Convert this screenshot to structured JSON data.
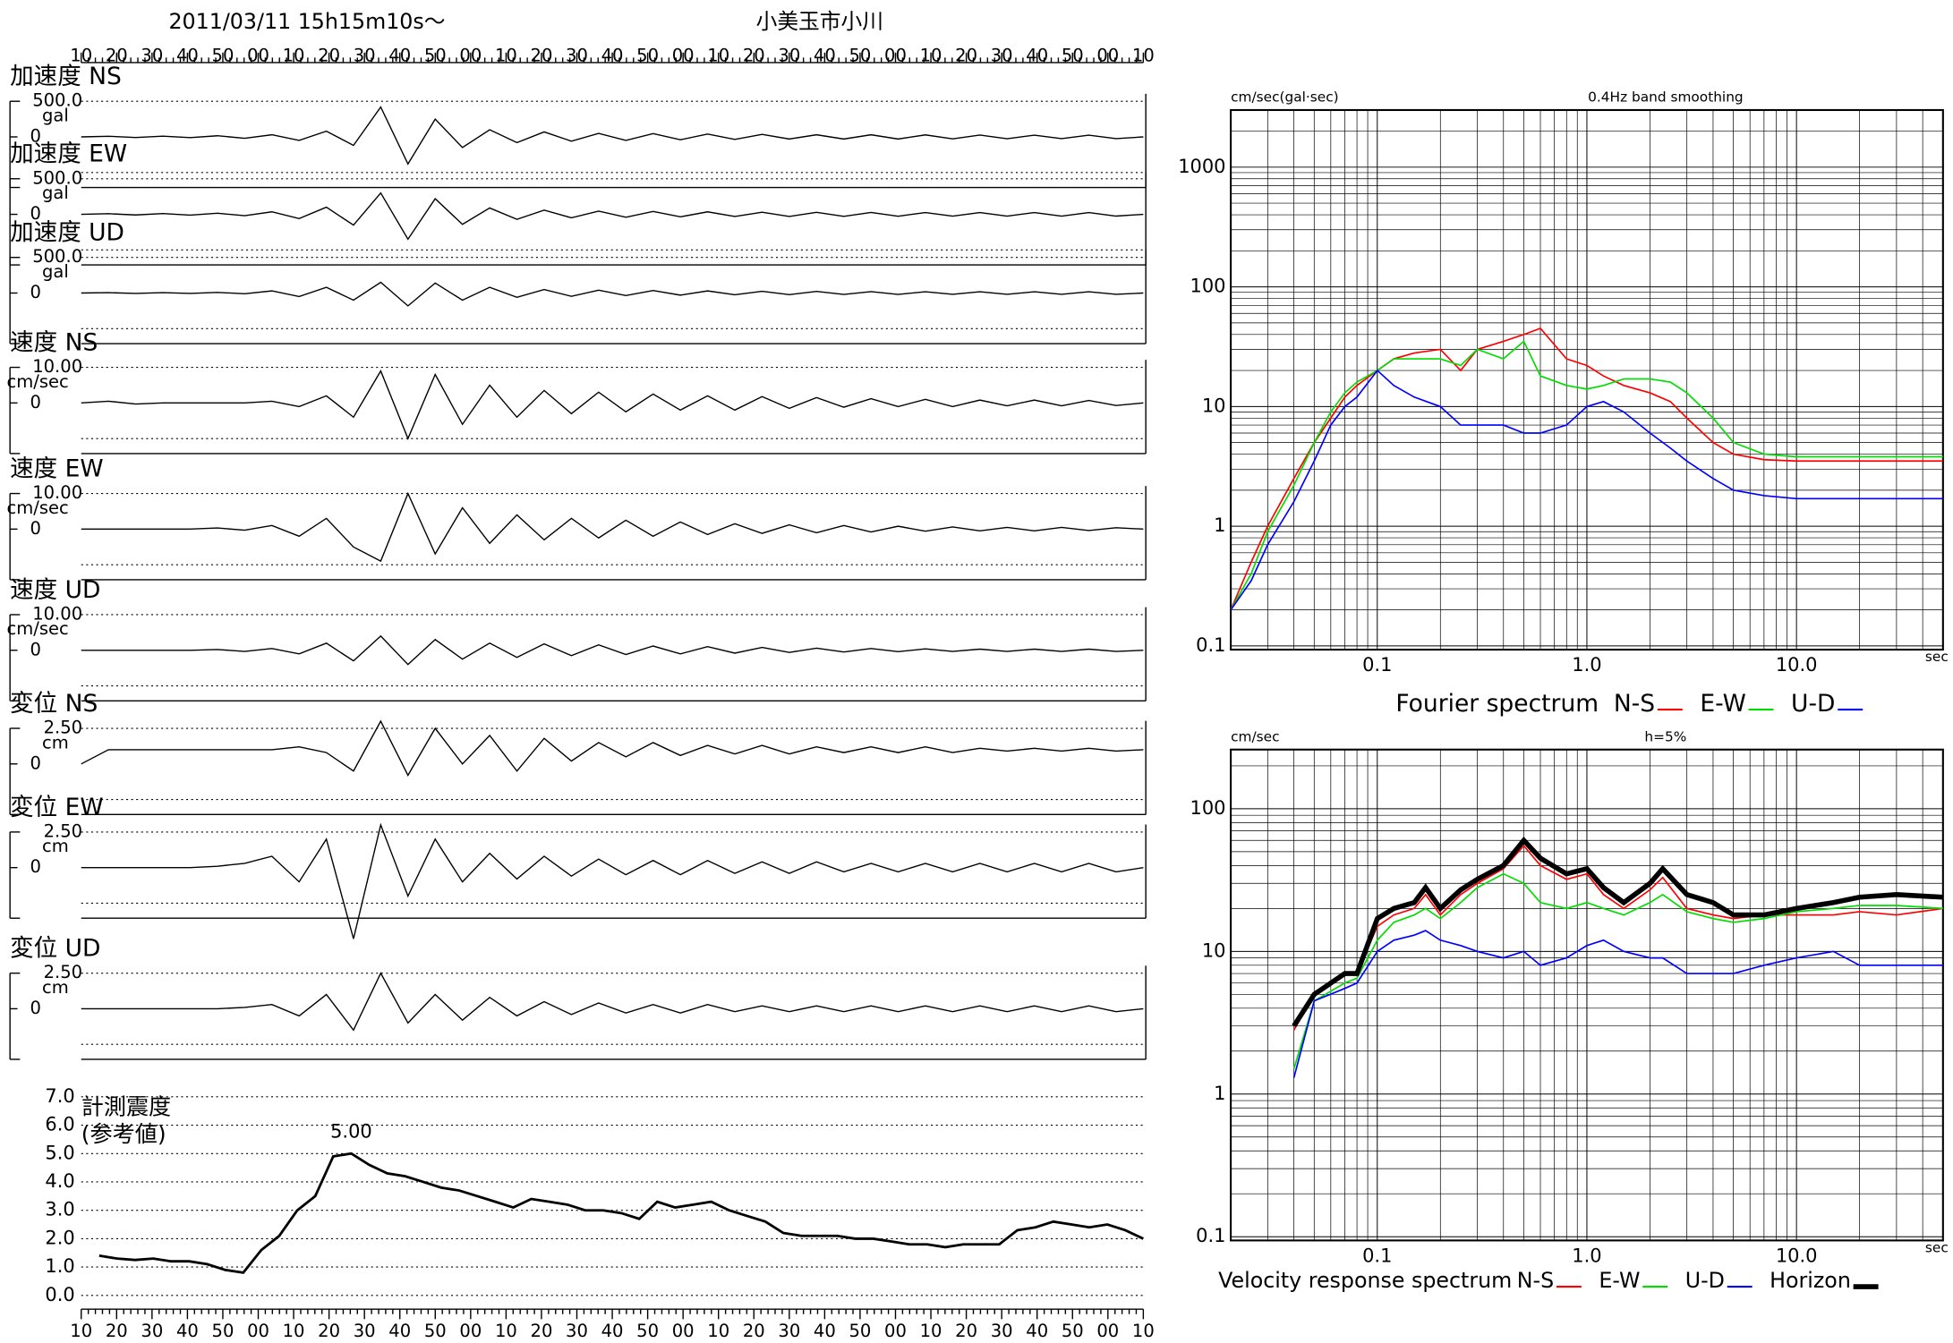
{
  "header": {
    "date": "2011/03/11  15h15m10s〜",
    "station": "小美玉市小川"
  },
  "time_labels": [
    "10",
    "20",
    "30",
    "40",
    "50",
    "00",
    "10",
    "20",
    "30",
    "40",
    "50",
    "00",
    "10",
    "20",
    "30",
    "40",
    "50",
    "00",
    "10",
    "20",
    "30",
    "40",
    "50",
    "00",
    "10",
    "20",
    "30",
    "40",
    "50",
    "00",
    "10"
  ],
  "chart_data": [
    {
      "type": "line",
      "title": "加速度 NS",
      "unit": "gal",
      "ylim": [
        -500,
        500
      ],
      "yticks": [
        {
          "value": 500,
          "label": "500.0"
        },
        0
      ],
      "values": [
        0,
        8,
        -8,
        10,
        -10,
        15,
        -20,
        30,
        -50,
        80,
        -120,
        420,
        -380,
        250,
        -150,
        100,
        -80,
        70,
        -60,
        50,
        -50,
        45,
        -40,
        40,
        -35,
        35,
        -30,
        30,
        -30,
        30,
        -30,
        28,
        -28,
        26,
        -26,
        25,
        -25,
        25,
        -25,
        0
      ]
    },
    {
      "type": "line",
      "title": "加速度 EW",
      "unit": "gal",
      "ylim": [
        -500,
        500
      ],
      "yticks": [
        {
          "value": 500,
          "label": "500.0"
        },
        0
      ],
      "values": [
        0,
        8,
        -8,
        10,
        -10,
        15,
        -20,
        35,
        -60,
        100,
        -150,
        300,
        -350,
        220,
        -140,
        90,
        -70,
        60,
        -50,
        45,
        -40,
        40,
        -35,
        35,
        -30,
        30,
        -30,
        28,
        -28,
        26,
        -26,
        25,
        -25,
        25,
        -25,
        25,
        -25,
        25,
        -25,
        0
      ]
    },
    {
      "type": "line",
      "title": "加速度 UD",
      "unit": "gal",
      "ylim": [
        -500,
        500
      ],
      "yticks": [
        {
          "value": 500,
          "label": "500.0"
        },
        0
      ],
      "values": [
        0,
        5,
        -5,
        5,
        -5,
        8,
        -10,
        30,
        -50,
        80,
        -100,
        150,
        -180,
        140,
        -100,
        80,
        -60,
        50,
        -45,
        40,
        -35,
        35,
        -30,
        30,
        -25,
        25,
        -22,
        22,
        -20,
        20,
        -20,
        18,
        -18,
        18,
        -18,
        18,
        -18,
        18,
        -18,
        0
      ]
    },
    {
      "type": "line",
      "title": "速度 NS",
      "unit": "cm/sec",
      "ylim": [
        -10,
        10
      ],
      "yticks": [
        {
          "value": 10,
          "label": "10.00"
        },
        0
      ],
      "values": [
        0,
        0.5,
        -0.3,
        0,
        0,
        0,
        0,
        0.5,
        -1,
        2,
        -4,
        9,
        -10,
        8,
        -6,
        5,
        -4,
        3.5,
        -3,
        3,
        -2.5,
        2.5,
        -2,
        2,
        -2,
        1.8,
        -1.5,
        1.5,
        -1.2,
        1.2,
        -1,
        1,
        -1,
        0.8,
        -0.8,
        0.8,
        -0.8,
        0.7,
        -0.7,
        0
      ]
    },
    {
      "type": "line",
      "title": "速度 EW",
      "unit": "cm/sec",
      "ylim": [
        -10,
        10
      ],
      "yticks": [
        {
          "value": 10,
          "label": "10.00"
        },
        0
      ],
      "values": [
        0,
        0,
        0,
        0,
        0,
        0.3,
        -0.3,
        1,
        -2,
        3,
        -5,
        -9,
        10,
        -7,
        6,
        -4,
        4,
        -3,
        3,
        -2.5,
        2.5,
        -2,
        2,
        -1.5,
        1.5,
        -1.2,
        1.2,
        -1,
        1,
        -0.8,
        0.8,
        -0.6,
        0.6,
        -0.5,
        0.5,
        -0.5,
        0.5,
        -0.4,
        0.4,
        0
      ]
    },
    {
      "type": "line",
      "title": "速度 UD",
      "unit": "cm/sec",
      "ylim": [
        -10,
        10
      ],
      "yticks": [
        {
          "value": 10,
          "label": "10.00"
        },
        0
      ],
      "values": [
        0,
        0,
        0,
        0,
        0,
        0.2,
        -0.3,
        0.5,
        -1,
        2,
        -3,
        4,
        -4,
        3,
        -2.5,
        2,
        -2,
        1.8,
        -1.5,
        1.5,
        -1.2,
        1.2,
        -1,
        1,
        -0.8,
        0.8,
        -0.6,
        0.6,
        -0.5,
        0.5,
        -0.4,
        0.4,
        -0.3,
        0.3,
        -0.3,
        0.3,
        -0.3,
        0.3,
        -0.3,
        0
      ]
    },
    {
      "type": "line",
      "title": "変位 NS",
      "unit": "cm",
      "ylim": [
        -2.5,
        2.5
      ],
      "yticks": [
        {
          "value": 2.5,
          "label": "2.50"
        },
        0
      ],
      "values": [
        0,
        1,
        1,
        1,
        1,
        1,
        1,
        1,
        1.2,
        0.8,
        -0.5,
        3,
        -0.8,
        2.5,
        0,
        2,
        -0.5,
        1.8,
        0.2,
        1.5,
        0.5,
        1.5,
        0.6,
        1.3,
        0.7,
        1.3,
        0.7,
        1.2,
        0.8,
        1.2,
        0.8,
        1.2,
        0.8,
        1.1,
        0.9,
        1.1,
        0.9,
        1.1,
        0.9,
        1
      ]
    },
    {
      "type": "line",
      "title": "変位 EW",
      "unit": "cm",
      "ylim": [
        -2.5,
        2.5
      ],
      "yticks": [
        {
          "value": 2.5,
          "label": "2.50"
        },
        0
      ],
      "values": [
        0,
        0,
        0,
        0,
        0,
        0.1,
        0.3,
        0.8,
        -1,
        2,
        -5,
        3,
        -2,
        2,
        -1,
        1,
        -0.8,
        0.8,
        -0.6,
        0.6,
        -0.5,
        0.5,
        -0.5,
        0.5,
        -0.4,
        0.4,
        -0.4,
        0.4,
        -0.3,
        0.3,
        -0.3,
        0.3,
        -0.3,
        0.3,
        -0.3,
        0.3,
        -0.3,
        0.3,
        -0.3,
        0
      ]
    },
    {
      "type": "line",
      "title": "変位 UD",
      "unit": "cm",
      "ylim": [
        -2.5,
        2.5
      ],
      "yticks": [
        {
          "value": 2.5,
          "label": "2.50"
        },
        0
      ],
      "values": [
        0,
        0,
        0,
        0,
        0,
        0,
        0.1,
        0.3,
        -0.5,
        1,
        -1.5,
        2.5,
        -1,
        1,
        -0.8,
        0.8,
        -0.5,
        0.5,
        -0.4,
        0.4,
        -0.3,
        0.3,
        -0.3,
        0.3,
        -0.2,
        0.2,
        -0.2,
        0.2,
        -0.2,
        0.2,
        -0.2,
        0.2,
        -0.2,
        0.2,
        -0.2,
        0.2,
        -0.2,
        0.2,
        -0.2,
        0
      ]
    },
    {
      "type": "line",
      "title": "計測震度",
      "subtitle": "(参考値)",
      "annotation": "5.00",
      "grid": true,
      "ylim": [
        0,
        7
      ],
      "yticks": [
        {
          "value": 0,
          "label": "0.0"
        },
        {
          "value": 1,
          "label": "1.0"
        },
        {
          "value": 2,
          "label": "2.0"
        },
        {
          "value": 3,
          "label": "3.0"
        },
        {
          "value": 4,
          "label": "4.0"
        },
        {
          "value": 5,
          "label": "5.0"
        },
        {
          "value": 6,
          "label": "6.0"
        },
        {
          "value": 7,
          "label": "7.0"
        }
      ],
      "values": [
        null,
        1.4,
        1.3,
        1.25,
        1.3,
        1.2,
        1.2,
        1.1,
        0.9,
        0.8,
        1.6,
        2.1,
        3.0,
        3.5,
        4.9,
        5.0,
        4.6,
        4.3,
        4.2,
        4.0,
        3.8,
        3.7,
        3.5,
        3.3,
        3.1,
        3.4,
        3.3,
        3.2,
        3.0,
        3.0,
        2.9,
        2.7,
        3.3,
        3.1,
        3.2,
        3.3,
        3.0,
        2.8,
        2.6,
        2.2,
        2.1,
        2.1,
        2.1,
        2.0,
        2.0,
        1.9,
        1.8,
        1.8,
        1.7,
        1.8,
        1.8,
        1.8,
        2.3,
        2.4,
        2.6,
        2.5,
        2.4,
        2.5,
        2.3,
        2.0
      ]
    },
    {
      "type": "loglog",
      "title": "Fourier spectrum",
      "y_label": "cm/sec(gal·sec)",
      "x_label": "sec",
      "annotation": "0.4Hz band smoothing",
      "grid": true,
      "xlim": [
        0.02,
        50
      ],
      "ylim": [
        0.1,
        3000
      ],
      "xticks": [
        0.1,
        {
          "value": 1,
          "label": "1.0"
        },
        {
          "value": 10,
          "label": "10.0"
        }
      ],
      "yticks": [
        0.1,
        1,
        10,
        100,
        1000
      ],
      "x": [
        0.02,
        0.025,
        0.03,
        0.04,
        0.05,
        0.06,
        0.07,
        0.08,
        0.1,
        0.12,
        0.15,
        0.2,
        0.25,
        0.3,
        0.4,
        0.5,
        0.6,
        0.8,
        1,
        1.2,
        1.5,
        2,
        2.5,
        3,
        4,
        5,
        7,
        10,
        20,
        50
      ],
      "series": [
        {
          "name": "N-S",
          "color": "#ff0000",
          "values": [
            0.2,
            0.5,
            1,
            2.5,
            5,
            8,
            12,
            15,
            20,
            25,
            28,
            30,
            20,
            30,
            35,
            40,
            45,
            25,
            22,
            18,
            15,
            13,
            11,
            8,
            5,
            4,
            3.6,
            3.5,
            3.5,
            3.5
          ]
        },
        {
          "name": "E-W",
          "color": "#00dd00",
          "values": [
            0.2,
            0.4,
            0.9,
            2.2,
            5,
            9,
            13,
            16,
            20,
            25,
            25,
            25,
            22,
            30,
            25,
            35,
            18,
            15,
            14,
            15,
            17,
            17,
            16,
            13,
            8,
            5,
            4,
            3.8,
            3.8,
            3.8
          ]
        },
        {
          "name": "U-D",
          "color": "#0000ff",
          "values": [
            0.2,
            0.35,
            0.7,
            1.6,
            3.5,
            7,
            10,
            12,
            20,
            15,
            12,
            10,
            7,
            7,
            7,
            6,
            6,
            7,
            10,
            11,
            9,
            6,
            4.5,
            3.5,
            2.5,
            2,
            1.8,
            1.7,
            1.7,
            1.7
          ]
        }
      ]
    },
    {
      "type": "loglog",
      "title": "Velocity response spectrum",
      "y_label": "cm/sec",
      "x_label": "sec",
      "annotation": "h=5%",
      "grid": true,
      "xlim": [
        0.02,
        50
      ],
      "ylim": [
        0.1,
        260
      ],
      "xticks": [
        0.1,
        {
          "value": 1,
          "label": "1.0"
        },
        {
          "value": 10,
          "label": "10.0"
        }
      ],
      "yticks": [
        0.1,
        1,
        10,
        100
      ],
      "x": [
        0.04,
        0.05,
        0.07,
        0.08,
        0.1,
        0.12,
        0.15,
        0.17,
        0.2,
        0.25,
        0.3,
        0.4,
        0.5,
        0.6,
        0.8,
        1,
        1.2,
        1.5,
        2,
        2.3,
        3,
        4,
        5,
        7,
        10,
        15,
        20,
        30,
        50
      ],
      "series": [
        {
          "name": "N-S",
          "color": "#ff0000",
          "values": [
            2.8,
            5,
            7,
            7,
            15,
            18,
            20,
            25,
            18,
            25,
            30,
            38,
            55,
            40,
            32,
            35,
            25,
            20,
            27,
            33,
            20,
            18,
            17,
            18,
            18,
            18,
            19,
            18,
            20
          ]
        },
        {
          "name": "E-W",
          "color": "#00dd00",
          "values": [
            1.5,
            4.5,
            6,
            6.5,
            12,
            16,
            18,
            20,
            17,
            22,
            28,
            35,
            30,
            22,
            20,
            22,
            20,
            18,
            22,
            25,
            19,
            17,
            16,
            17,
            19,
            20,
            21,
            21,
            20
          ]
        },
        {
          "name": "U-D",
          "color": "#0000ff",
          "values": [
            1.3,
            4.5,
            5.5,
            6,
            10,
            12,
            13,
            14,
            12,
            11,
            10,
            9,
            10,
            8,
            9,
            11,
            12,
            10,
            9,
            9,
            7,
            7,
            7,
            8,
            9,
            10,
            8,
            8,
            8
          ]
        },
        {
          "name": "Horizon",
          "color": "#000000",
          "values": [
            3,
            5,
            7,
            7,
            17,
            20,
            22,
            28,
            20,
            27,
            32,
            40,
            60,
            45,
            35,
            38,
            28,
            22,
            30,
            38,
            25,
            22,
            18,
            18,
            20,
            22,
            24,
            25,
            24
          ]
        }
      ]
    }
  ]
}
